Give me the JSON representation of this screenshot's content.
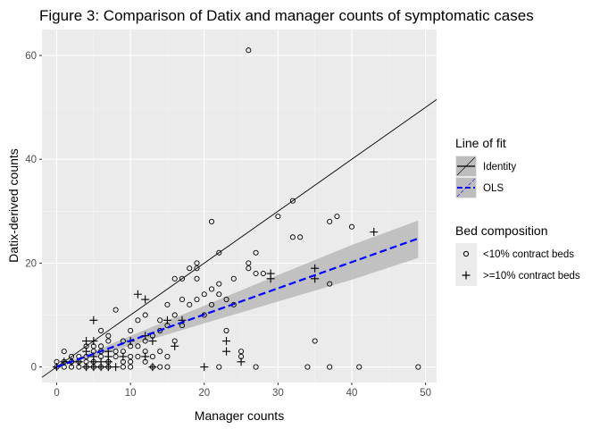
{
  "chart_data": {
    "type": "scatter",
    "title": "Figure 3: Comparison of Datix and manager counts of symptomatic cases",
    "xlabel": "Manager counts",
    "ylabel": "Datix-derived counts",
    "xlim": [
      -2,
      51.5
    ],
    "ylim": [
      -3,
      65
    ],
    "x_ticks": [
      0,
      10,
      20,
      30,
      40,
      50
    ],
    "y_ticks": [
      0,
      20,
      40,
      60
    ],
    "grid": true,
    "legend_position": "right",
    "lines": [
      {
        "name": "Identity",
        "slope": 1,
        "intercept": 0,
        "color": "#000000",
        "style": "solid"
      },
      {
        "name": "OLS",
        "slope": 0.505,
        "intercept": 0,
        "x_range": [
          0,
          49
        ],
        "color": "#0000ff",
        "style": "dashed",
        "ci": {
          "x": [
            0,
            10,
            20,
            30,
            40,
            49
          ],
          "lower": [
            0,
            4.1,
            8.4,
            12.6,
            16.8,
            21.0
          ],
          "upper": [
            0,
            6.0,
            11.8,
            17.7,
            23.5,
            28.2
          ]
        }
      }
    ],
    "legends": [
      {
        "title": "Line of fit",
        "entries": [
          "Identity",
          "OLS"
        ]
      },
      {
        "title": "Bed composition",
        "entries": [
          "<10% contract beds",
          ">=10% contract beds"
        ]
      }
    ],
    "series": [
      {
        "name": "<10% contract beds",
        "marker": "circle",
        "points": [
          [
            0,
            0
          ],
          [
            0,
            1
          ],
          [
            1,
            0
          ],
          [
            1,
            1
          ],
          [
            1,
            3
          ],
          [
            2,
            0
          ],
          [
            2,
            1
          ],
          [
            2,
            2
          ],
          [
            3,
            0
          ],
          [
            3,
            1
          ],
          [
            3,
            2
          ],
          [
            4,
            0
          ],
          [
            4,
            1
          ],
          [
            4,
            2
          ],
          [
            4,
            4
          ],
          [
            5,
            0
          ],
          [
            5,
            1
          ],
          [
            5,
            3
          ],
          [
            5,
            4
          ],
          [
            6,
            0
          ],
          [
            6,
            2
          ],
          [
            6,
            3
          ],
          [
            6,
            4
          ],
          [
            6,
            7
          ],
          [
            7,
            0
          ],
          [
            7,
            1
          ],
          [
            7,
            5
          ],
          [
            7,
            6
          ],
          [
            8,
            2
          ],
          [
            8,
            3
          ],
          [
            8,
            11
          ],
          [
            9,
            0
          ],
          [
            9,
            1
          ],
          [
            9,
            3
          ],
          [
            9,
            5
          ],
          [
            10,
            0
          ],
          [
            10,
            1
          ],
          [
            10,
            2
          ],
          [
            10,
            4
          ],
          [
            10,
            7
          ],
          [
            11,
            2
          ],
          [
            11,
            4
          ],
          [
            11,
            9
          ],
          [
            12,
            1
          ],
          [
            12,
            3
          ],
          [
            12,
            5
          ],
          [
            12,
            10
          ],
          [
            13,
            0
          ],
          [
            13,
            2
          ],
          [
            13,
            6
          ],
          [
            14,
            0
          ],
          [
            14,
            3
          ],
          [
            14,
            7
          ],
          [
            14,
            9
          ],
          [
            15,
            0
          ],
          [
            15,
            2
          ],
          [
            15,
            8
          ],
          [
            15,
            12
          ],
          [
            16,
            5
          ],
          [
            16,
            10
          ],
          [
            16,
            17
          ],
          [
            17,
            8
          ],
          [
            17,
            13
          ],
          [
            17,
            17
          ],
          [
            18,
            12
          ],
          [
            18,
            19
          ],
          [
            19,
            13
          ],
          [
            19,
            17
          ],
          [
            19,
            19
          ],
          [
            19,
            20
          ],
          [
            20,
            10
          ],
          [
            20,
            14
          ],
          [
            21,
            12
          ],
          [
            21,
            15
          ],
          [
            21,
            28
          ],
          [
            22,
            0
          ],
          [
            22,
            14
          ],
          [
            22,
            16
          ],
          [
            22,
            22
          ],
          [
            23,
            7
          ],
          [
            23,
            13
          ],
          [
            24,
            12
          ],
          [
            24,
            17
          ],
          [
            25,
            2
          ],
          [
            25,
            3
          ],
          [
            26,
            19
          ],
          [
            26,
            20
          ],
          [
            26,
            61
          ],
          [
            27,
            0
          ],
          [
            27,
            18
          ],
          [
            27,
            22
          ],
          [
            28,
            18
          ],
          [
            30,
            29
          ],
          [
            32,
            25
          ],
          [
            32,
            32
          ],
          [
            33,
            25
          ],
          [
            34,
            0
          ],
          [
            35,
            5
          ],
          [
            37,
            0
          ],
          [
            37,
            16
          ],
          [
            37,
            28
          ],
          [
            38,
            29
          ],
          [
            40,
            27
          ],
          [
            41,
            0
          ],
          [
            49,
            0
          ]
        ]
      },
      {
        "name": ">=10% contract beds",
        "marker": "plus",
        "points": [
          [
            0,
            0
          ],
          [
            1,
            1
          ],
          [
            2,
            1
          ],
          [
            3,
            1
          ],
          [
            4,
            0
          ],
          [
            4,
            3
          ],
          [
            4,
            5
          ],
          [
            5,
            0
          ],
          [
            5,
            1
          ],
          [
            5,
            2
          ],
          [
            5,
            5
          ],
          [
            5,
            9
          ],
          [
            6,
            0
          ],
          [
            6,
            1
          ],
          [
            7,
            0
          ],
          [
            7,
            1
          ],
          [
            7,
            2
          ],
          [
            7,
            3
          ],
          [
            8,
            0
          ],
          [
            9,
            2
          ],
          [
            10,
            5
          ],
          [
            11,
            14
          ],
          [
            12,
            2
          ],
          [
            12,
            6
          ],
          [
            12,
            13
          ],
          [
            13,
            0
          ],
          [
            13,
            5
          ],
          [
            15,
            9
          ],
          [
            16,
            4
          ],
          [
            17,
            9
          ],
          [
            20,
            0
          ],
          [
            23,
            3
          ],
          [
            23,
            5
          ],
          [
            25,
            1
          ],
          [
            29,
            17
          ],
          [
            29,
            18
          ],
          [
            35,
            17
          ],
          [
            35,
            19
          ],
          [
            43,
            26
          ]
        ]
      }
    ]
  }
}
